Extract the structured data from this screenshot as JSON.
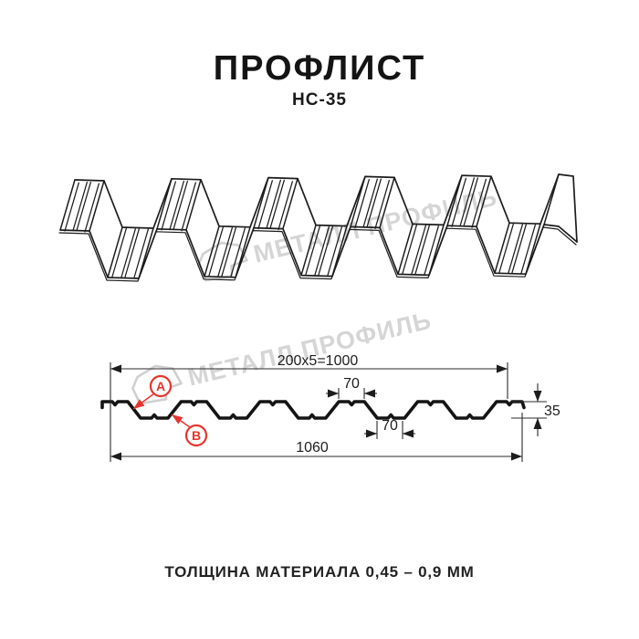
{
  "page": {
    "title": "ПРОФЛИСТ",
    "subtitle": "НС-35",
    "footer": "ТОЛЩИНА МАТЕРИАЛА 0,45 – 0,9 ММ"
  },
  "watermark": {
    "text": "МЕТАЛЛ ПРОФИЛЬ",
    "logo": "metall-profil-flag"
  },
  "drawing": {
    "dimensions": {
      "working_width": "200x5=1000",
      "top_flat_width": "70",
      "bottom_flat_width": "70",
      "height": "35",
      "full_width": "1060"
    },
    "callouts": {
      "a": "A",
      "b": "B"
    }
  },
  "colors": {
    "line": "#1c1c1c",
    "dim_line": "#2a2a2a",
    "accent_red": "#e7342c",
    "watermark_gray": "#d5d5d5"
  }
}
